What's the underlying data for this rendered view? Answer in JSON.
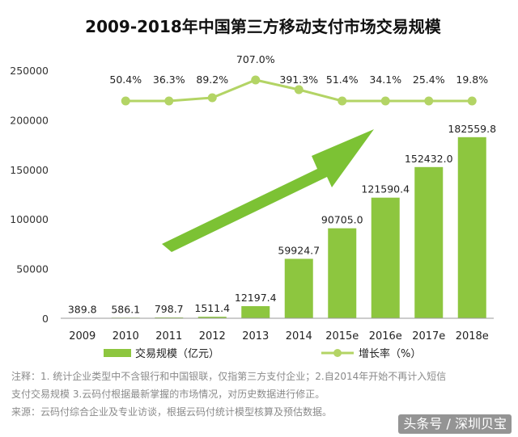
{
  "chart_data": {
    "type": "bar",
    "title": "2009-2018年中国第三方移动支付市场交易规模",
    "categories": [
      "2009",
      "2010",
      "2011",
      "2012",
      "2013",
      "2014",
      "2015e",
      "2016e",
      "2017e",
      "2018e"
    ],
    "series": [
      {
        "name": "交易规模（亿元）",
        "values": [
          389.8,
          586.1,
          798.7,
          1511.4,
          12197.4,
          59924.7,
          90705.0,
          121590.4,
          152432.0,
          182559.8
        ],
        "labels": [
          "389.8",
          "586.1",
          "798.7",
          "1511.4",
          "12197.4",
          "59924.7",
          "90705.0",
          "121590.4",
          "152432.0",
          "182559.8"
        ],
        "type": "bar"
      },
      {
        "name": "增长率（%）",
        "values": [
          null,
          50.4,
          36.3,
          89.2,
          707.0,
          391.3,
          51.4,
          34.1,
          25.4,
          19.8
        ],
        "labels": [
          "",
          "50.4%",
          "36.3%",
          "89.2%",
          "707.0%",
          "391.3%",
          "51.4%",
          "34.1%",
          "25.4%",
          "19.8%"
        ],
        "type": "line"
      }
    ],
    "yticks": [
      "0",
      "50000",
      "100000",
      "150000",
      "200000",
      "250000"
    ],
    "ylim": [
      0,
      250000
    ],
    "grid": false,
    "legend_position": "bottom",
    "colors": {
      "bar": "#8dc63f",
      "line": "#b3d465",
      "arrow": "#7cc234"
    }
  },
  "notes": {
    "line1": "注释：1. 统计企业类型中不含银行和中国银联，仅指第三方支付企业；2.自2014年开始不再计入短信",
    "line2": "支付交易规模 3.云码付根据最新掌握的市场情况，对历史数据进行修正。",
    "line3": "来源：云码付综合企业及专业访谈，根据云码付统计模型核算及预估数据。"
  },
  "watermark": "头条号 / 深圳贝宝"
}
